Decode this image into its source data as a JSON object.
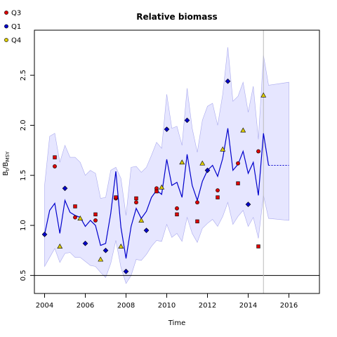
{
  "chart_data": {
    "type": "line",
    "title": "Relative biomass",
    "xlabel": "Time",
    "ylabel_main": "B",
    "ylabel_sub1": "t",
    "ylabel_mid": "/B",
    "ylabel_sub2": "MSY",
    "xlim": [
      2003.5,
      2017.5
    ],
    "ylim": [
      0.32,
      2.95
    ],
    "x_ticks": [
      2004,
      2006,
      2008,
      2010,
      2012,
      2014,
      2016
    ],
    "y_ticks": [
      0.5,
      1.0,
      1.5,
      2.0,
      2.5
    ],
    "reference_hline": 0.5,
    "forecast_start": 2014.75,
    "colors": {
      "fit_line": "#0000cc",
      "ci_band": "#e6e6ff",
      "ci_edge": "#aaaaee",
      "Q3": "#dd0000",
      "Q1": "#0000cc",
      "Q4": "#ddcc00",
      "ref_line": "#000000",
      "vline": "#bbbbbb"
    },
    "legend": {
      "position": "top-left",
      "entries": [
        {
          "name": "Q3",
          "marker": "circle",
          "color": "#dd0000"
        },
        {
          "name": "Q1",
          "marker": "circle",
          "color": "#0000cc"
        },
        {
          "name": "Q4",
          "marker": "circle",
          "color": "#ddcc00"
        }
      ]
    },
    "fit": {
      "x": [
        2004.0,
        2004.25,
        2004.5,
        2004.75,
        2005.0,
        2005.25,
        2005.5,
        2005.75,
        2006.0,
        2006.25,
        2006.5,
        2006.75,
        2007.0,
        2007.25,
        2007.5,
        2007.75,
        2008.0,
        2008.25,
        2008.5,
        2008.75,
        2009.0,
        2009.25,
        2009.5,
        2009.75,
        2010.0,
        2010.25,
        2010.5,
        2010.75,
        2011.0,
        2011.25,
        2011.5,
        2011.75,
        2012.0,
        2012.25,
        2012.5,
        2012.75,
        2013.0,
        2013.25,
        2013.5,
        2013.75,
        2014.0,
        2014.25,
        2014.5,
        2014.75,
        2015.0
      ],
      "y": [
        0.91,
        1.15,
        1.22,
        0.92,
        1.25,
        1.13,
        1.1,
        1.08,
        0.99,
        1.05,
        1.0,
        0.8,
        0.82,
        1.12,
        1.54,
        0.98,
        0.67,
        0.99,
        1.17,
        1.07,
        1.14,
        1.28,
        1.35,
        1.31,
        1.66,
        1.4,
        1.43,
        1.28,
        1.71,
        1.4,
        1.25,
        1.44,
        1.55,
        1.6,
        1.49,
        1.67,
        1.97,
        1.55,
        1.61,
        1.74,
        1.52,
        1.63,
        1.3,
        1.92,
        1.6
      ]
    },
    "forecast": {
      "x": [
        2015.0,
        2016.0
      ],
      "y": [
        1.6,
        1.6
      ]
    },
    "ci_upper": {
      "x": [
        2004.0,
        2004.25,
        2004.5,
        2004.75,
        2005.0,
        2005.25,
        2005.5,
        2005.75,
        2006.0,
        2006.25,
        2006.5,
        2006.75,
        2007.0,
        2007.25,
        2007.5,
        2007.75,
        2008.0,
        2008.25,
        2008.5,
        2008.75,
        2009.0,
        2009.25,
        2009.5,
        2009.75,
        2010.0,
        2010.25,
        2010.5,
        2010.75,
        2011.0,
        2011.25,
        2011.5,
        2011.75,
        2012.0,
        2012.25,
        2012.5,
        2012.75,
        2013.0,
        2013.25,
        2013.5,
        2013.75,
        2014.0,
        2014.25,
        2014.5,
        2014.75,
        2015.0,
        2016.0
      ],
      "y": [
        1.4,
        1.89,
        1.92,
        1.63,
        1.8,
        1.68,
        1.68,
        1.63,
        1.5,
        1.55,
        1.52,
        1.27,
        1.28,
        1.55,
        1.58,
        1.47,
        1.1,
        1.58,
        1.59,
        1.53,
        1.58,
        1.7,
        1.83,
        1.77,
        2.31,
        1.97,
        1.99,
        1.8,
        2.37,
        1.97,
        1.73,
        2.05,
        2.19,
        2.22,
        2.0,
        2.31,
        2.78,
        2.24,
        2.29,
        2.43,
        2.13,
        2.39,
        1.86,
        2.7,
        2.4,
        2.43
      ]
    },
    "ci_lower": {
      "x": [
        2004.0,
        2004.25,
        2004.5,
        2004.75,
        2005.0,
        2005.25,
        2005.5,
        2005.75,
        2006.0,
        2006.25,
        2006.5,
        2006.75,
        2007.0,
        2007.25,
        2007.5,
        2007.75,
        2008.0,
        2008.25,
        2008.5,
        2008.75,
        2009.0,
        2009.25,
        2009.5,
        2009.75,
        2010.0,
        2010.25,
        2010.5,
        2010.75,
        2011.0,
        2011.25,
        2011.5,
        2011.75,
        2012.0,
        2012.25,
        2012.5,
        2012.75,
        2013.0,
        2013.25,
        2013.5,
        2013.75,
        2014.0,
        2014.25,
        2014.5,
        2014.75,
        2015.0,
        2016.0
      ],
      "y": [
        0.59,
        0.68,
        0.77,
        0.63,
        0.72,
        0.73,
        0.68,
        0.68,
        0.64,
        0.6,
        0.59,
        0.53,
        0.48,
        0.62,
        0.85,
        0.58,
        0.42,
        0.5,
        0.66,
        0.65,
        0.71,
        0.79,
        0.85,
        0.84,
        1.01,
        0.88,
        0.92,
        0.84,
        1.08,
        0.92,
        0.83,
        0.97,
        1.02,
        1.06,
        0.99,
        1.09,
        1.23,
        1.01,
        1.09,
        1.15,
        0.99,
        1.08,
        0.87,
        1.3,
        1.07,
        1.05
      ]
    },
    "series": [
      {
        "name": "Q3",
        "marker": "circle",
        "color": "#dd0000",
        "x": [
          2004.5,
          2005.5,
          2006.5,
          2007.5,
          2008.5,
          2009.5,
          2010.5,
          2011.5,
          2012.5,
          2013.5,
          2014.5
        ],
        "y": [
          1.59,
          1.08,
          1.05,
          1.27,
          1.23,
          1.37,
          1.17,
          1.23,
          1.35,
          1.62,
          1.74
        ]
      },
      {
        "name": "Q3 (square)",
        "marker": "square",
        "color": "#dd0000",
        "x": [
          2004.5,
          2005.5,
          2006.5,
          2007.5,
          2008.5,
          2009.5,
          2010.5,
          2011.5,
          2012.5,
          2013.5,
          2014.5
        ],
        "y": [
          1.68,
          1.19,
          1.11,
          1.28,
          1.27,
          1.34,
          1.11,
          1.04,
          1.28,
          1.42,
          0.79
        ]
      },
      {
        "name": "Q1",
        "marker": "diamond",
        "color": "#0000cc",
        "x": [
          2004.0,
          2005.0,
          2006.0,
          2007.0,
          2008.0,
          2009.0,
          2010.0,
          2011.0,
          2012.0,
          2013.0,
          2014.0
        ],
        "y": [
          0.91,
          1.37,
          0.82,
          0.75,
          0.54,
          0.95,
          1.96,
          2.05,
          1.55,
          2.44,
          1.21
        ]
      },
      {
        "name": "Q4",
        "marker": "triangle",
        "color": "#ddcc00",
        "x": [
          2004.75,
          2005.75,
          2006.75,
          2007.75,
          2008.75,
          2009.75,
          2010.75,
          2011.75,
          2012.75,
          2013.75,
          2014.75
        ],
        "y": [
          0.79,
          1.07,
          0.66,
          0.79,
          1.05,
          1.38,
          1.63,
          1.62,
          1.76,
          1.95,
          2.3
        ]
      }
    ]
  }
}
